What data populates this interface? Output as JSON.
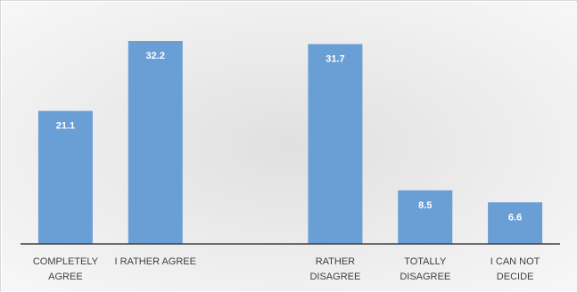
{
  "chart_data": {
    "type": "bar",
    "categories": [
      "COMPLETELY\nAGREE",
      "I RATHER AGREE",
      "",
      "RATHER\nDISAGREE",
      "TOTALLY\nDISAGREE",
      "I CAN NOT\nDECIDE"
    ],
    "values": [
      21.1,
      32.2,
      null,
      31.7,
      8.5,
      6.6
    ],
    "data_labels": [
      "21.1",
      "32.2",
      "",
      "31.7",
      "8.5",
      "6.6"
    ],
    "title": "",
    "xlabel": "",
    "ylabel": "",
    "ylim": [
      0,
      35
    ],
    "grid": false,
    "legend": "none",
    "colors": {
      "bar": "#6a9fd6",
      "background_gradient_center": "#e0e0e0",
      "background_gradient_edge": "#f7f7f7",
      "axis": "#404040",
      "data_label": "#ffffff"
    }
  }
}
